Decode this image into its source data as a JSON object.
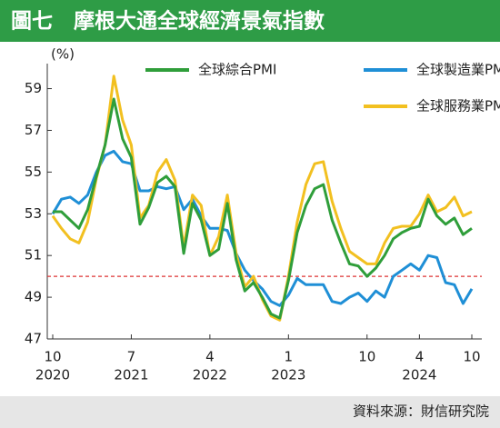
{
  "chart_data": {
    "type": "line",
    "title": "圖七　摩根大通全球經濟景氣指數",
    "y_unit": "(%)",
    "source": "資料來源：財信研究院",
    "categories": [
      "10",
      null,
      null,
      null,
      null,
      null,
      null,
      null,
      null,
      "7",
      null,
      null,
      null,
      null,
      null,
      null,
      null,
      null,
      "4",
      null,
      null,
      null,
      null,
      null,
      null,
      null,
      null,
      "1",
      null,
      null,
      null,
      null,
      null,
      null,
      null,
      null,
      "10",
      null,
      null,
      null,
      null,
      null,
      "4",
      null,
      null,
      null,
      null,
      null,
      "10"
    ],
    "category_years": [
      "2020",
      null,
      null,
      null,
      null,
      null,
      null,
      null,
      null,
      "2021",
      null,
      null,
      null,
      null,
      null,
      null,
      null,
      null,
      "2022",
      null,
      null,
      null,
      null,
      null,
      null,
      null,
      null,
      "2023",
      null,
      null,
      null,
      null,
      null,
      null,
      null,
      null,
      null,
      null,
      null,
      null,
      null,
      null,
      "2024",
      null,
      null,
      null,
      null,
      null,
      null
    ],
    "series": [
      {
        "name": "全球綜合PMI",
        "color": "#2f9e3a",
        "values": [
          53.1,
          53.1,
          52.7,
          52.3,
          53.2,
          54.8,
          56.3,
          58.5,
          56.6,
          55.7,
          52.5,
          53.3,
          54.5,
          54.8,
          54.3,
          51.1,
          53.5,
          52.7,
          51.0,
          51.3,
          53.5,
          50.8,
          49.3,
          49.7,
          49.0,
          48.2,
          48.0,
          49.8,
          52.1,
          53.4,
          54.2,
          54.4,
          52.7,
          51.6,
          50.6,
          50.5,
          50.0,
          50.4,
          51.0,
          51.8,
          52.1,
          52.3,
          52.4,
          53.7,
          52.9,
          52.5,
          52.8,
          52.0,
          52.3
        ]
      },
      {
        "name": "全球製造業PMI",
        "color": "#1f8fd6",
        "values": [
          53.0,
          53.7,
          53.8,
          53.5,
          53.9,
          55.0,
          55.8,
          56.0,
          55.5,
          55.4,
          54.1,
          54.1,
          54.3,
          54.2,
          54.3,
          53.2,
          53.7,
          52.9,
          52.3,
          52.3,
          52.2,
          51.1,
          50.3,
          49.8,
          49.4,
          48.8,
          48.6,
          49.1,
          49.9,
          49.6,
          49.6,
          49.6,
          48.8,
          48.7,
          49.0,
          49.2,
          48.8,
          49.3,
          49.0,
          50.0,
          50.3,
          50.6,
          50.3,
          51.0,
          50.9,
          49.7,
          49.6,
          48.7,
          49.4
        ]
      },
      {
        "name": "全球服務業PMI",
        "color": "#f2c020",
        "values": [
          52.9,
          52.3,
          51.8,
          51.6,
          52.6,
          54.7,
          56.3,
          59.6,
          57.5,
          56.3,
          52.8,
          53.4,
          55.0,
          55.6,
          54.6,
          51.4,
          53.9,
          53.4,
          51.0,
          51.9,
          53.9,
          51.1,
          49.5,
          50.0,
          48.9,
          48.1,
          47.9,
          50.0,
          52.6,
          54.4,
          55.4,
          55.5,
          53.6,
          52.3,
          51.2,
          50.9,
          50.6,
          50.6,
          51.6,
          52.3,
          52.4,
          52.4,
          53.0,
          53.9,
          53.1,
          53.3,
          53.8,
          52.9,
          53.1
        ]
      }
    ],
    "ylim": [
      47,
      60.2
    ],
    "yticks": [
      47,
      49,
      51,
      53,
      55,
      57,
      59
    ],
    "reference_line": {
      "value": 50,
      "color": "#d33"
    }
  }
}
